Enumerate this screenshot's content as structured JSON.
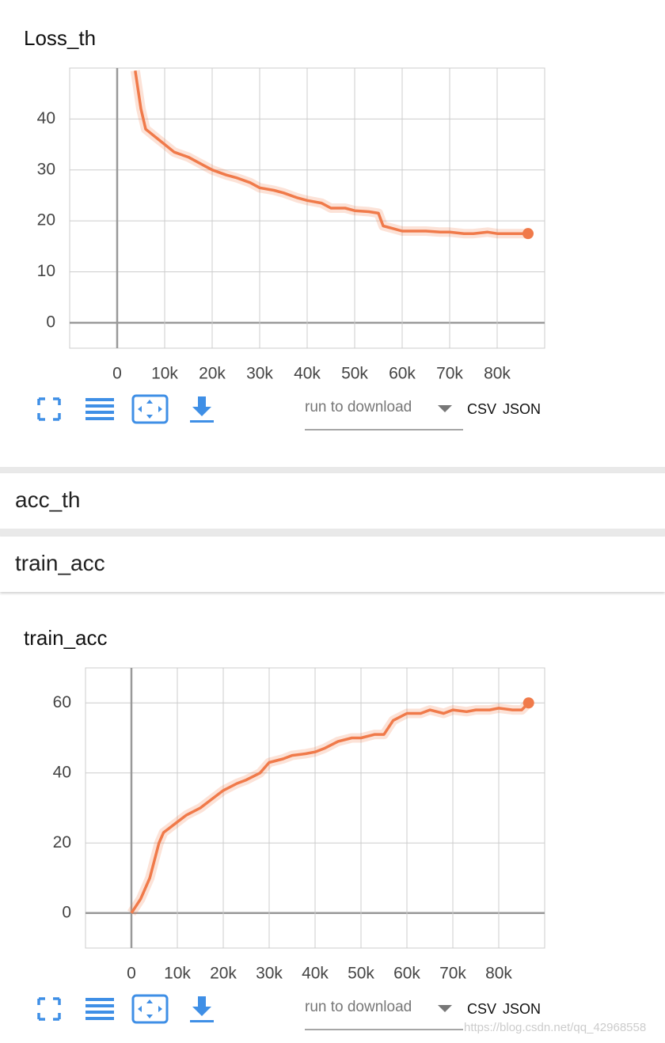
{
  "chart_data": [
    {
      "type": "line",
      "title": "Loss_th",
      "x": [
        3800,
        5000,
        6000,
        8000,
        10000,
        12000,
        15000,
        18000,
        20000,
        23000,
        25000,
        28000,
        30000,
        33000,
        35000,
        38000,
        40000,
        43000,
        45000,
        48000,
        50000,
        53000,
        55000,
        56000,
        58000,
        60000,
        63000,
        65000,
        68000,
        70000,
        73000,
        75000,
        78000,
        80000,
        83000,
        86500
      ],
      "series": [
        {
          "color": "#f07a4a",
          "values": [
            49.5,
            42,
            38,
            36.5,
            35,
            33.5,
            32.5,
            31,
            30,
            29,
            28.5,
            27.5,
            26.5,
            26,
            25.5,
            24.5,
            24,
            23.5,
            22.5,
            22.5,
            22,
            21.8,
            21.5,
            19,
            18.5,
            18,
            18,
            18,
            17.8,
            17.8,
            17.5,
            17.5,
            17.8,
            17.5,
            17.5,
            17.5
          ]
        }
      ],
      "xlim": [
        -10000,
        90000
      ],
      "ylim": [
        -5,
        50
      ],
      "xticks": [
        0,
        {
          "value": 10000,
          "label": "10k"
        },
        {
          "value": 20000,
          "label": "20k"
        },
        {
          "value": 30000,
          "label": "30k"
        },
        {
          "value": 40000,
          "label": "40k"
        },
        {
          "value": 50000,
          "label": "50k"
        },
        {
          "value": 60000,
          "label": "60k"
        },
        {
          "value": 70000,
          "label": "70k"
        },
        {
          "value": 80000,
          "label": "80k"
        }
      ],
      "yticks": [
        0,
        10,
        20,
        30,
        40
      ],
      "grid": true
    },
    {
      "type": "line",
      "title": "train_acc",
      "x": [
        0,
        2000,
        4000,
        5000,
        6000,
        7000,
        8000,
        10000,
        12000,
        15000,
        17000,
        20000,
        23000,
        25000,
        28000,
        30000,
        33000,
        35000,
        38000,
        40000,
        42000,
        45000,
        48000,
        50000,
        53000,
        55000,
        57000,
        60000,
        63000,
        65000,
        68000,
        70000,
        73000,
        75000,
        78000,
        80000,
        83000,
        85000,
        86500
      ],
      "series": [
        {
          "color": "#f07a4a",
          "values": [
            0,
            4,
            10,
            15,
            20,
            23,
            24,
            26,
            28,
            30,
            32,
            35,
            37,
            38,
            40,
            43,
            44,
            45,
            45.5,
            46,
            47,
            49,
            50,
            50,
            51,
            51,
            55,
            57,
            57,
            58,
            57,
            58,
            57.5,
            58,
            58,
            58.5,
            58,
            58,
            60
          ]
        }
      ],
      "xlim": [
        -10000,
        90000
      ],
      "ylim": [
        -10,
        70
      ],
      "xticks": [
        0,
        {
          "value": 10000,
          "label": "10k"
        },
        {
          "value": 20000,
          "label": "20k"
        },
        {
          "value": 30000,
          "label": "30k"
        },
        {
          "value": 40000,
          "label": "40k"
        },
        {
          "value": 50000,
          "label": "50k"
        },
        {
          "value": 60000,
          "label": "60k"
        },
        {
          "value": 70000,
          "label": "70k"
        },
        {
          "value": 80000,
          "label": "80k"
        }
      ],
      "yticks": [
        0,
        20,
        40,
        60
      ],
      "grid": true
    }
  ],
  "cards": [
    {
      "download_placeholder": "run to download",
      "formats": [
        "CSV",
        "JSON"
      ]
    },
    {
      "download_placeholder": "run to download",
      "formats": [
        "CSV",
        "JSON"
      ]
    }
  ],
  "sections": [
    "acc_th",
    "train_acc"
  ],
  "watermark": "https://blog.csdn.net/qq_42968558"
}
